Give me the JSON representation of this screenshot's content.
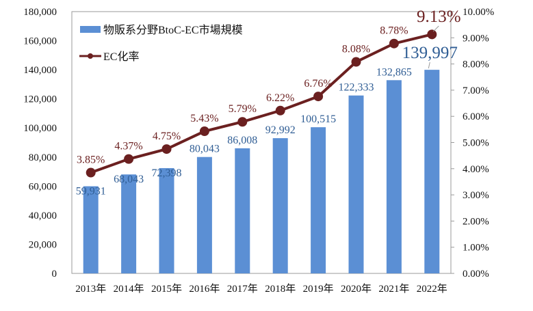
{
  "chart_data": {
    "type": "bar+line",
    "categories": [
      "2013年",
      "2014年",
      "2015年",
      "2016年",
      "2017年",
      "2018年",
      "2019年",
      "2020年",
      "2021年",
      "2022年"
    ],
    "series": [
      {
        "name": "物販系分野BtoC-EC市場規模",
        "type": "bar",
        "axis": "left",
        "values": [
          59931,
          68043,
          72398,
          80043,
          86008,
          92992,
          100515,
          122333,
          132865,
          139997
        ],
        "labels": [
          "59,931",
          "68,043",
          "72,398",
          "80,043",
          "86,008",
          "92,992",
          "100,515",
          "122,333",
          "132,865",
          "139,997"
        ],
        "color": "#5b8fd4",
        "label_color": "#2f5d94"
      },
      {
        "name": "EC化率",
        "type": "line",
        "axis": "right",
        "values": [
          3.85,
          4.37,
          4.75,
          5.43,
          5.79,
          6.22,
          6.76,
          8.08,
          8.78,
          9.13
        ],
        "labels": [
          "3.85%",
          "4.37%",
          "4.75%",
          "5.43%",
          "5.79%",
          "6.22%",
          "6.76%",
          "8.08%",
          "8.78%",
          "9.13%"
        ],
        "color": "#6b2020"
      }
    ],
    "left_axis": {
      "ylim": [
        0,
        180000
      ],
      "ticks": [
        "0",
        "20,000",
        "40,000",
        "60,000",
        "80,000",
        "100,000",
        "120,000",
        "140,000",
        "160,000",
        "180,000"
      ]
    },
    "right_axis": {
      "ylim": [
        0,
        10
      ],
      "ticks": [
        "0.00%",
        "1.00%",
        "2.00%",
        "3.00%",
        "4.00%",
        "5.00%",
        "6.00%",
        "7.00%",
        "8.00%",
        "9.00%",
        "10.00%"
      ]
    },
    "legend": "top-left",
    "grid": false
  }
}
